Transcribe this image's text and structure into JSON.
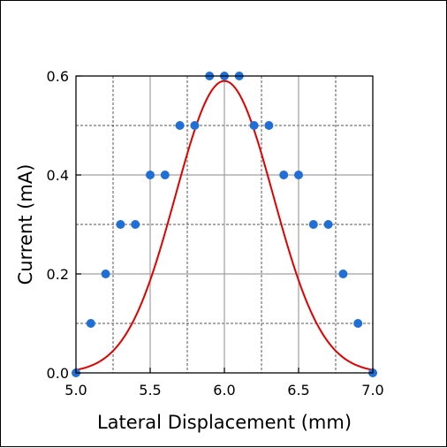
{
  "chart_data": {
    "type": "scatter",
    "title": "",
    "xlabel": "Lateral Displacement (mm)",
    "ylabel": "Current (mA)",
    "xlim": [
      5.0,
      7.0
    ],
    "ylim": [
      0.0,
      0.6
    ],
    "x_ticks": [
      5.0,
      5.5,
      6.0,
      6.5,
      7.0
    ],
    "x_tick_labels": [
      "5.0",
      "5.5",
      "6.0",
      "6.5",
      "7.0"
    ],
    "y_ticks": [
      0.0,
      0.2,
      0.4,
      0.6
    ],
    "y_tick_labels": [
      "0.0",
      "0.2",
      "0.4",
      "0.6"
    ],
    "x_minor_gridlines": [
      5.25,
      5.75,
      6.25,
      6.75
    ],
    "y_minor_gridlines": [
      0.1,
      0.3,
      0.5
    ],
    "grid": true,
    "legend": "none",
    "series": [
      {
        "type": "scatter",
        "color": "#1f6fd6",
        "points": [
          [
            5.0,
            0.0
          ],
          [
            5.1,
            0.1
          ],
          [
            5.2,
            0.2
          ],
          [
            5.3,
            0.3
          ],
          [
            5.4,
            0.3
          ],
          [
            5.5,
            0.4
          ],
          [
            5.6,
            0.4
          ],
          [
            5.7,
            0.5
          ],
          [
            5.8,
            0.5
          ],
          [
            5.9,
            0.6
          ],
          [
            6.0,
            0.6
          ],
          [
            6.1,
            0.6
          ],
          [
            6.2,
            0.5
          ],
          [
            6.3,
            0.5
          ],
          [
            6.4,
            0.4
          ],
          [
            6.5,
            0.4
          ],
          [
            6.6,
            0.3
          ],
          [
            6.7,
            0.3
          ],
          [
            6.8,
            0.2
          ],
          [
            6.9,
            0.1
          ],
          [
            7.0,
            0.0
          ]
        ]
      },
      {
        "type": "line",
        "color": "#e00000",
        "fit": {
          "model": "gaussian",
          "amplitude": 0.59,
          "center": 6.0,
          "sigma": 0.33
        }
      }
    ]
  }
}
